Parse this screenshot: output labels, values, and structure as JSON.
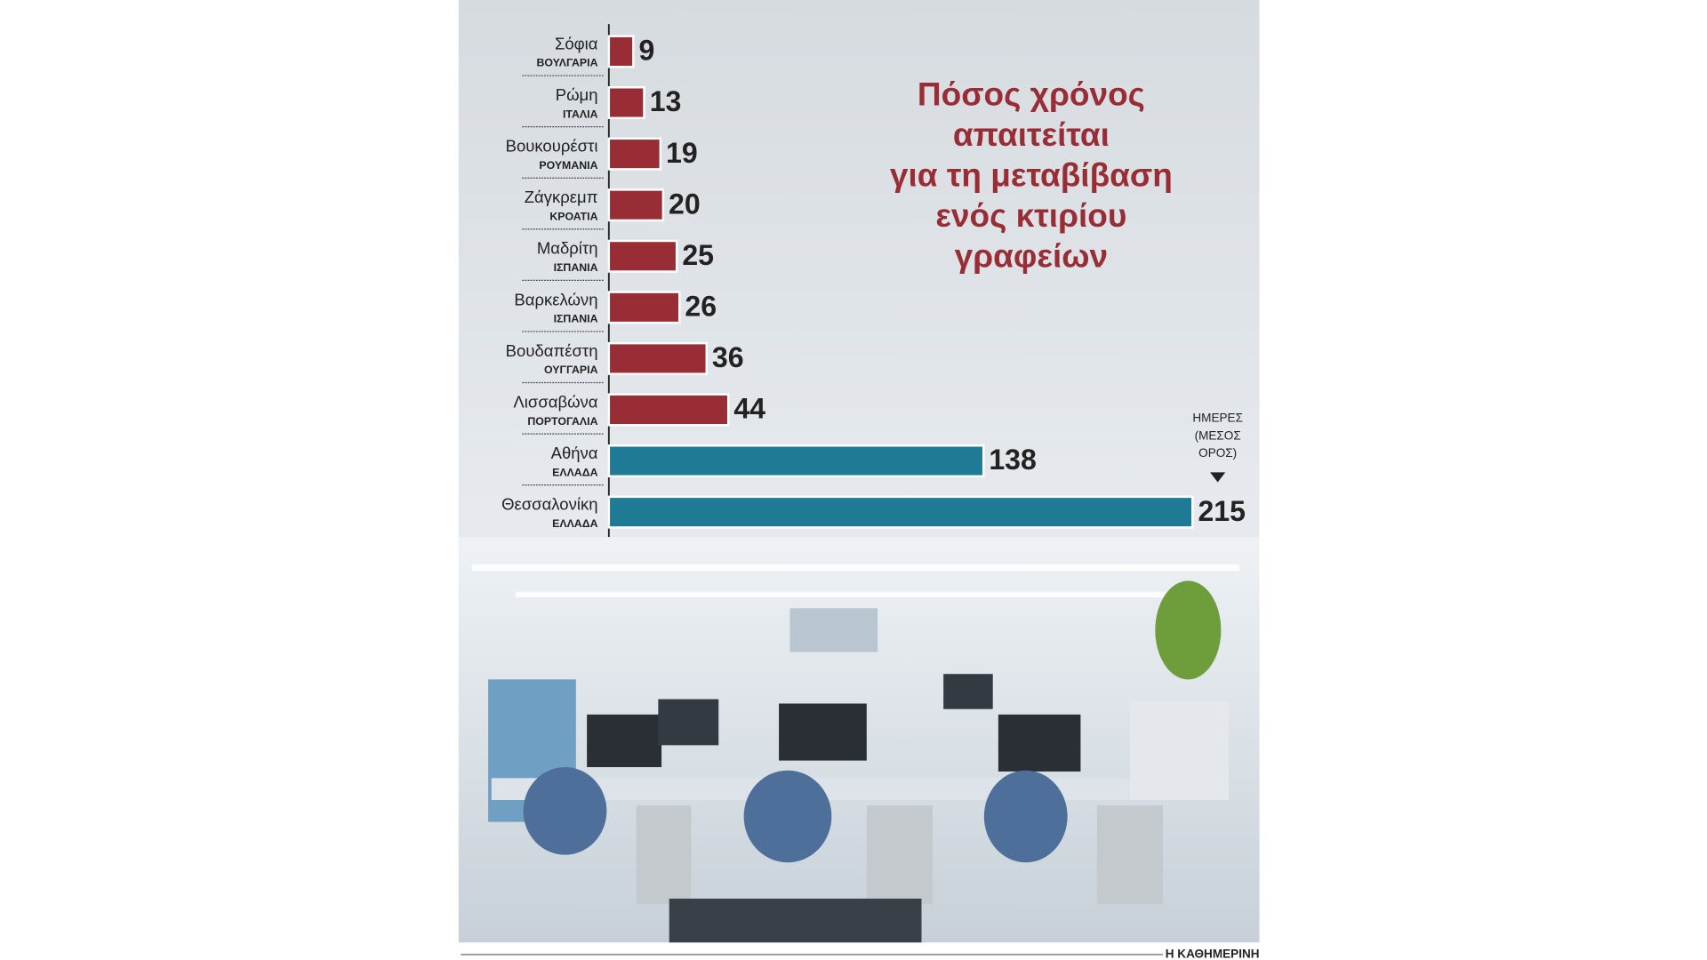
{
  "chart_data": {
    "type": "bar",
    "orientation": "horizontal",
    "title": [
      "Πόσος χρόνος",
      "απαιτείται",
      "για τη μεταβίβαση",
      "ενός κτιρίου",
      "γραφείων"
    ],
    "categories": [
      "Σόφια",
      "Ρώμη",
      "Βουκουρέστι",
      "Ζάγκρεμπ",
      "Μαδρίτη",
      "Βαρκελώνη",
      "Βουδαπέστη",
      "Λισσαβώνα",
      "Αθήνα",
      "Θεσσαλονίκη"
    ],
    "subcategories": [
      "ΒΟΥΛΓΑΡΙΑ",
      "ΙΤΑΛΙΑ",
      "ΡΟΥΜΑΝΙΑ",
      "ΚΡΟΑΤΙΑ",
      "ΙΣΠΑΝΙΑ",
      "ΙΣΠΑΝΙΑ",
      "ΟΥΓΓΑΡΙΑ",
      "ΠΟΡΤΟΓΑΛΙΑ",
      "ΕΛΛΑΔΑ",
      "ΕΛΛΑΔΑ"
    ],
    "values": [
      9,
      13,
      19,
      20,
      25,
      26,
      36,
      44,
      138,
      215
    ],
    "colors": [
      "#982d35",
      "#982d35",
      "#982d35",
      "#982d35",
      "#982d35",
      "#982d35",
      "#982d35",
      "#982d35",
      "#1f7b95",
      "#1f7b95"
    ],
    "unit_label": [
      "ΗΜΕΡΕΣ",
      "(ΜΕΣΟΣ",
      "ΟΡΟΣ)"
    ],
    "source": "Η ΚΑΘΗΜΕΡΙΝΗ"
  }
}
